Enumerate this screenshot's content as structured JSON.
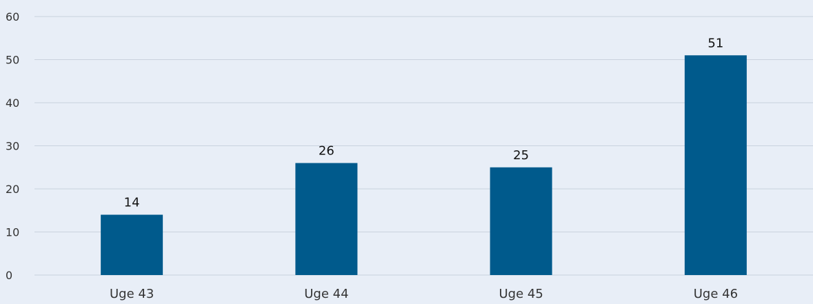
{
  "chart_data": {
    "type": "bar",
    "title": "",
    "xlabel": "",
    "ylabel": "",
    "categories": [
      "Uge 43",
      "Uge 44",
      "Uge 45",
      "Uge 46"
    ],
    "values": [
      14,
      26,
      25,
      51
    ],
    "data_labels": [
      "14",
      "26",
      "25",
      "51"
    ],
    "ylim": [
      0,
      60
    ],
    "yticks": [
      0,
      10,
      20,
      30,
      40,
      50,
      60
    ],
    "ytick_labels": [
      "0",
      "10",
      "20",
      "30",
      "40",
      "50",
      "60"
    ],
    "grid": true,
    "legend": "none",
    "colors": {
      "bar": "#005A8C",
      "background": "#E8EEF7",
      "grid": "#C9D2DE"
    }
  }
}
